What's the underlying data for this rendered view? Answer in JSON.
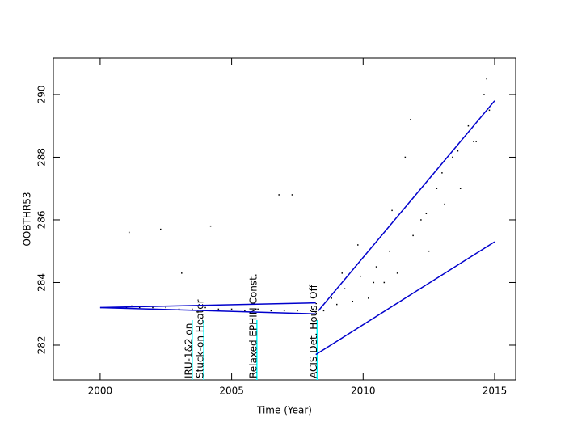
{
  "chart_data": {
    "type": "scatter",
    "x_label": "Time (Year)",
    "y_label": "OOBTHR53",
    "xlim": [
      1998.22,
      2015.8
    ],
    "ylim": [
      280.89,
      291.16
    ],
    "xticks": [
      2000,
      2005,
      2010,
      2015
    ],
    "yticks": [
      282,
      284,
      286,
      288,
      290
    ],
    "series": [
      {
        "color": "#000000",
        "x": [
          2000.5,
          2001.0,
          2001.2,
          2001.5,
          2002.0,
          2002.5,
          2003.0,
          2003.5,
          2004.0,
          2004.5,
          2005.0,
          2005.5,
          2006.0,
          2006.5,
          2007.0,
          2007.5,
          2008.0,
          2001.1,
          2002.3,
          2003.1,
          2004.2,
          2006.8,
          2007.3,
          2008.5,
          2008.8,
          2009.0,
          2009.3,
          2009.6,
          2009.9,
          2010.2,
          2010.5,
          2010.8,
          2011.0,
          2011.3,
          2011.6,
          2011.9,
          2012.2,
          2012.5,
          2012.8,
          2013.1,
          2013.4,
          2013.7,
          2014.0,
          2014.3,
          2014.6,
          2014.8,
          2009.2,
          2009.8,
          2010.4,
          2011.1,
          2011.8,
          2012.4,
          2013.0,
          2013.6,
          2014.2,
          2014.7
        ],
        "values": [
          283.2,
          283.2,
          283.25,
          283.2,
          283.2,
          283.2,
          283.15,
          283.15,
          283.2,
          283.15,
          283.15,
          283.1,
          283.15,
          283.1,
          283.1,
          283.1,
          283.1,
          285.6,
          285.7,
          284.3,
          285.8,
          286.8,
          286.8,
          283.1,
          283.5,
          283.3,
          283.8,
          283.4,
          284.2,
          283.5,
          284.5,
          284.0,
          285.0,
          284.3,
          288.0,
          285.5,
          286.0,
          285.0,
          287.0,
          286.5,
          288.0,
          287.0,
          289.0,
          288.5,
          290.0,
          289.5,
          284.3,
          285.2,
          284.0,
          286.3,
          289.2,
          286.2,
          287.5,
          288.2,
          288.5,
          290.5
        ]
      }
    ],
    "fit_lines": [
      {
        "color": "#0000cc",
        "x": [
          2000,
          2008.2
        ],
        "values": [
          283.2,
          283.35
        ]
      },
      {
        "color": "#0000cc",
        "x": [
          2000,
          2008.2
        ],
        "values": [
          283.2,
          283.0
        ]
      },
      {
        "color": "#0000cc",
        "x": [
          2008.3,
          2015
        ],
        "values": [
          283.1,
          289.8
        ]
      },
      {
        "color": "#0000cc",
        "x": [
          2008.2,
          2015
        ],
        "values": [
          281.7,
          285.3
        ]
      }
    ],
    "event_color": "#00ffff",
    "events": [
      {
        "x": 2003.5,
        "ymax": 282.8,
        "label": "IRU-1&2 on"
      },
      {
        "x": 2003.94,
        "ymax": 282.8,
        "label": "Stuck-on Heater"
      },
      {
        "x": 2005.96,
        "ymax": 282.8,
        "label": "Relaxed EPHIN Const."
      },
      {
        "x": 2008.25,
        "ymax": 282.8,
        "label": "ACIS Det. Hous. Off"
      }
    ]
  }
}
